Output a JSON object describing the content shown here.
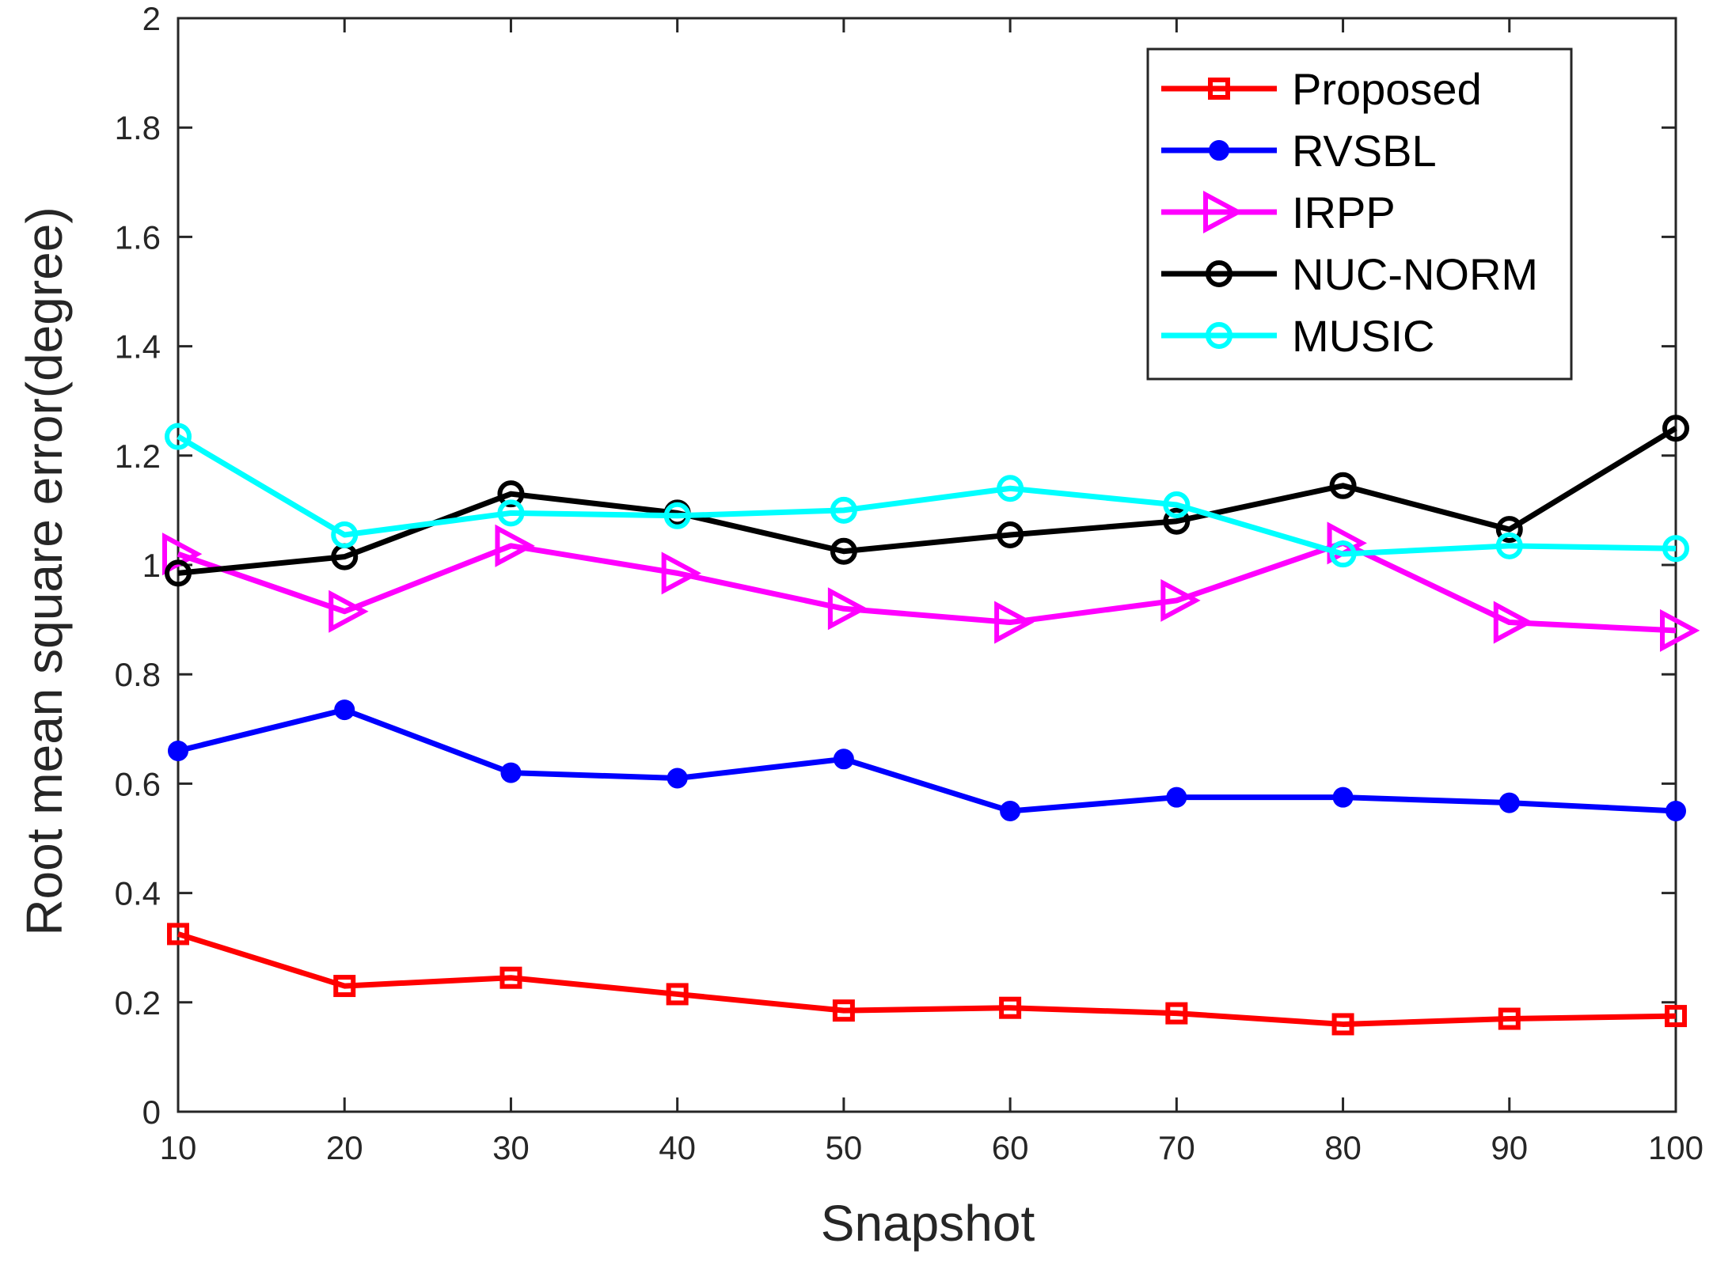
{
  "chart_data": {
    "type": "line",
    "title": "",
    "xlabel": "Snapshot",
    "ylabel": "Root mean square error(degree)",
    "xlim": [
      10,
      100
    ],
    "ylim": [
      0,
      2
    ],
    "x": [
      10,
      20,
      30,
      40,
      50,
      60,
      70,
      80,
      90,
      100
    ],
    "xticks": [
      "10",
      "20",
      "30",
      "40",
      "50",
      "60",
      "70",
      "80",
      "90",
      "100"
    ],
    "yticks": [
      "0",
      "0.2",
      "0.4",
      "0.6",
      "0.8",
      "1",
      "1.2",
      "1.4",
      "1.6",
      "1.8",
      "2"
    ],
    "grid": false,
    "legend_position": "top-right",
    "series": [
      {
        "name": "Proposed",
        "color": "#ff0000",
        "marker": "square",
        "values": [
          0.325,
          0.23,
          0.245,
          0.215,
          0.185,
          0.19,
          0.18,
          0.16,
          0.17,
          0.175
        ]
      },
      {
        "name": "RVSBL",
        "color": "#0000ff",
        "marker": "filled-circle",
        "values": [
          0.66,
          0.735,
          0.62,
          0.61,
          0.645,
          0.55,
          0.575,
          0.575,
          0.565,
          0.55
        ]
      },
      {
        "name": "IRPP",
        "color": "#ff00ff",
        "marker": "triangle-right",
        "values": [
          1.02,
          0.915,
          1.035,
          0.985,
          0.92,
          0.895,
          0.935,
          1.04,
          0.895,
          0.88
        ]
      },
      {
        "name": "NUC-NORM",
        "color": "#000000",
        "marker": "circle",
        "values": [
          0.985,
          1.015,
          1.13,
          1.095,
          1.025,
          1.055,
          1.08,
          1.145,
          1.065,
          1.25
        ]
      },
      {
        "name": "MUSIC",
        "color": "#00ffff",
        "marker": "circle",
        "values": [
          1.235,
          1.055,
          1.095,
          1.09,
          1.1,
          1.14,
          1.11,
          1.02,
          1.035,
          1.03
        ]
      }
    ]
  }
}
